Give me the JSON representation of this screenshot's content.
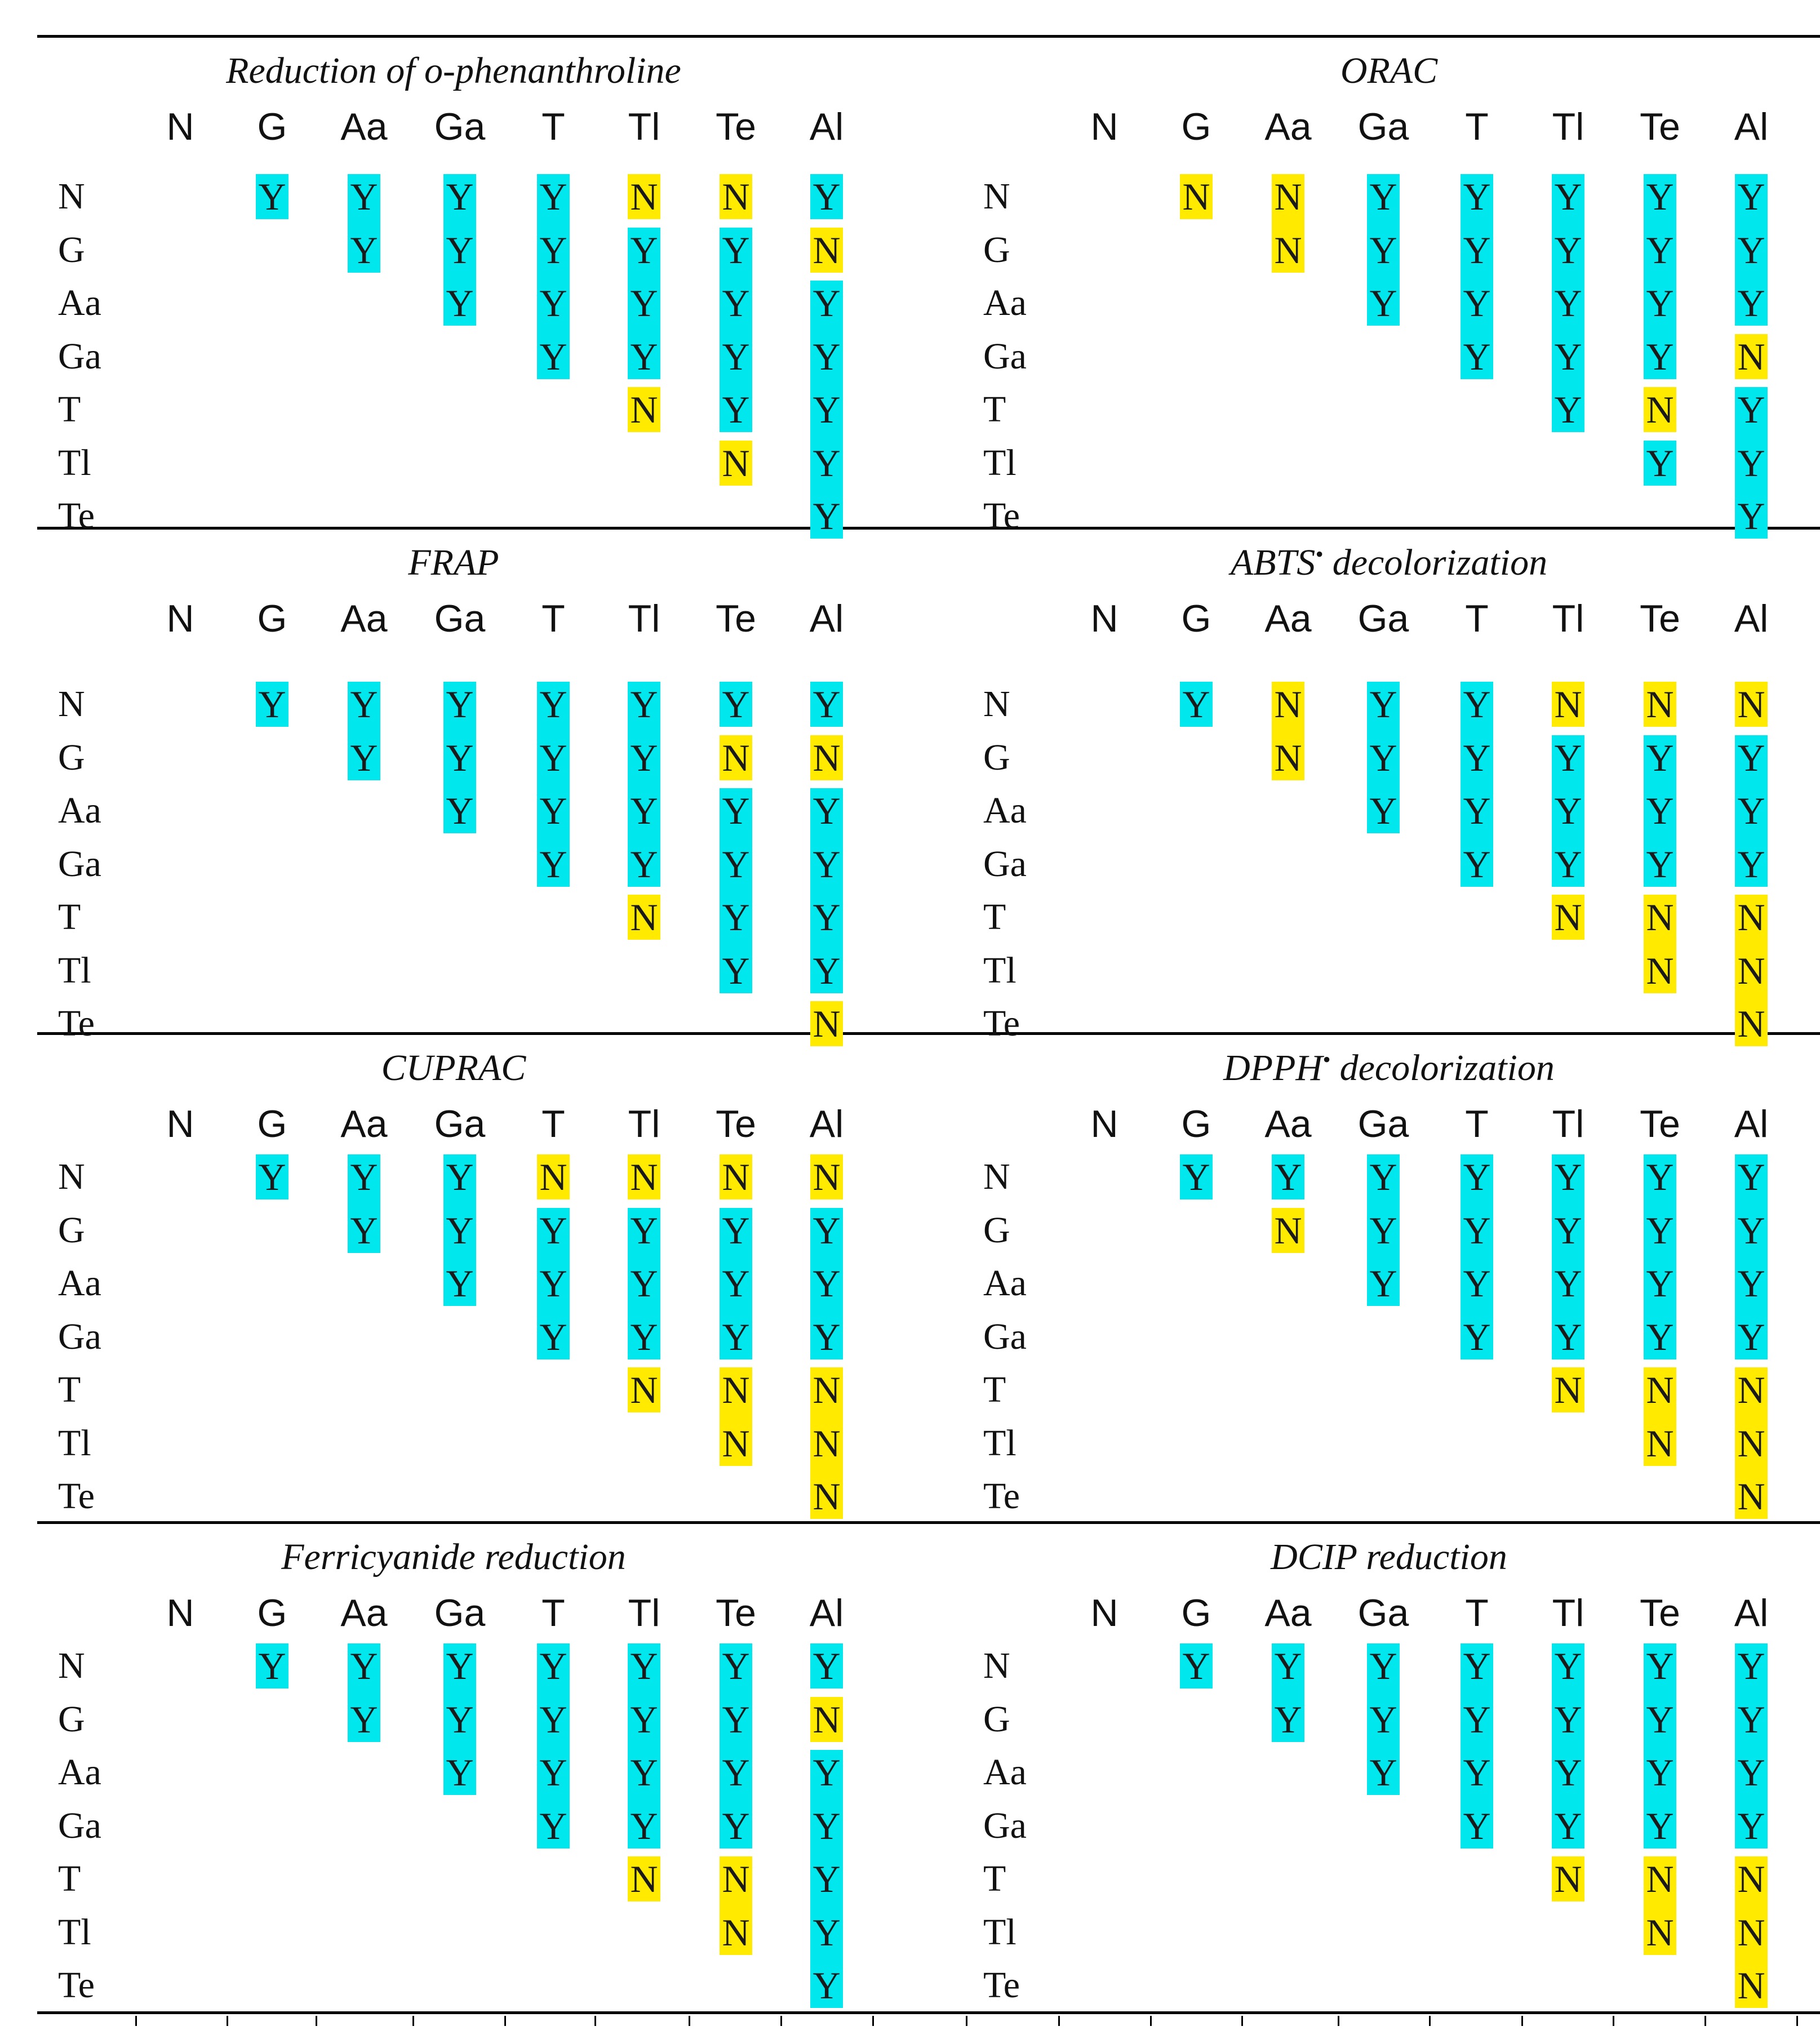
{
  "colors": {
    "yes": "#00e8ee",
    "no": "#ffea00"
  },
  "columns": [
    "N",
    "G",
    "Aa",
    "Ga",
    "T",
    "Tl",
    "Te",
    "Al"
  ],
  "rows": [
    "N",
    "G",
    "Aa",
    "Ga",
    "T",
    "Tl",
    "Te"
  ],
  "panels": [
    {
      "title": "Reduction of o-phenanthroline",
      "matrix": [
        [
          "Y",
          "Y",
          "Y",
          "Y",
          "N",
          "N",
          "Y"
        ],
        [
          "Y",
          "Y",
          "Y",
          "Y",
          "Y",
          "N"
        ],
        [
          "Y",
          "Y",
          "Y",
          "Y",
          "Y"
        ],
        [
          "Y",
          "Y",
          "Y",
          "Y"
        ],
        [
          "N",
          "Y",
          "Y"
        ],
        [
          "N",
          "Y"
        ],
        [
          "Y"
        ]
      ]
    },
    {
      "title": "ORAC",
      "matrix": [
        [
          "N",
          "N",
          "Y",
          "Y",
          "Y",
          "Y",
          "Y"
        ],
        [
          "N",
          "Y",
          "Y",
          "Y",
          "Y",
          "Y"
        ],
        [
          "Y",
          "Y",
          "Y",
          "Y",
          "Y"
        ],
        [
          "Y",
          "Y",
          "Y",
          "N"
        ],
        [
          "Y",
          "N",
          "Y"
        ],
        [
          "Y",
          "Y"
        ],
        [
          "Y"
        ]
      ]
    },
    {
      "title": "FRAP",
      "matrix": [
        [
          "Y",
          "Y",
          "Y",
          "Y",
          "Y",
          "Y",
          "Y"
        ],
        [
          "Y",
          "Y",
          "Y",
          "Y",
          "N",
          "N"
        ],
        [
          "Y",
          "Y",
          "Y",
          "Y",
          "Y"
        ],
        [
          "Y",
          "Y",
          "Y",
          "Y"
        ],
        [
          "N",
          "Y",
          "Y"
        ],
        [
          "Y",
          "Y"
        ],
        [
          "N"
        ]
      ]
    },
    {
      "title": "ABTS",
      "title_sup": "•",
      "title_suffix": " decolorization",
      "matrix": [
        [
          "Y",
          "N",
          "Y",
          "Y",
          "N",
          "N",
          "N"
        ],
        [
          "N",
          "Y",
          "Y",
          "Y",
          "Y",
          "Y"
        ],
        [
          "Y",
          "Y",
          "Y",
          "Y",
          "Y"
        ],
        [
          "Y",
          "Y",
          "Y",
          "Y"
        ],
        [
          "N",
          "N",
          "N"
        ],
        [
          "N",
          "N"
        ],
        [
          "N"
        ]
      ]
    },
    {
      "title": "CUPRAC",
      "matrix": [
        [
          "Y",
          "Y",
          "Y",
          "N",
          "N",
          "N",
          "N"
        ],
        [
          "Y",
          "Y",
          "Y",
          "Y",
          "Y",
          "Y"
        ],
        [
          "Y",
          "Y",
          "Y",
          "Y",
          "Y"
        ],
        [
          "Y",
          "Y",
          "Y",
          "Y"
        ],
        [
          "N",
          "N",
          "N"
        ],
        [
          "N",
          "N"
        ],
        [
          "N"
        ]
      ]
    },
    {
      "title": "DPPH",
      "title_sup": "•",
      "title_suffix": " decolorization",
      "matrix": [
        [
          "Y",
          "Y",
          "Y",
          "Y",
          "Y",
          "Y",
          "Y"
        ],
        [
          "N",
          "Y",
          "Y",
          "Y",
          "Y",
          "Y"
        ],
        [
          "Y",
          "Y",
          "Y",
          "Y",
          "Y"
        ],
        [
          "Y",
          "Y",
          "Y",
          "Y"
        ],
        [
          "N",
          "N",
          "N"
        ],
        [
          "N",
          "N"
        ],
        [
          "N"
        ]
      ]
    },
    {
      "title": "Ferricyanide reduction",
      "matrix": [
        [
          "Y",
          "Y",
          "Y",
          "Y",
          "Y",
          "Y",
          "Y"
        ],
        [
          "Y",
          "Y",
          "Y",
          "Y",
          "Y",
          "N"
        ],
        [
          "Y",
          "Y",
          "Y",
          "Y",
          "Y"
        ],
        [
          "Y",
          "Y",
          "Y",
          "Y"
        ],
        [
          "N",
          "N",
          "Y"
        ],
        [
          "N",
          "Y"
        ],
        [
          "Y"
        ]
      ]
    },
    {
      "title": "DCIP reduction",
      "matrix": [
        [
          "Y",
          "Y",
          "Y",
          "Y",
          "Y",
          "Y",
          "Y"
        ],
        [
          "Y",
          "Y",
          "Y",
          "Y",
          "Y",
          "Y"
        ],
        [
          "Y",
          "Y",
          "Y",
          "Y",
          "Y"
        ],
        [
          "Y",
          "Y",
          "Y",
          "Y"
        ],
        [
          "N",
          "N",
          "N"
        ],
        [
          "N",
          "N"
        ],
        [
          "N"
        ]
      ]
    }
  ]
}
